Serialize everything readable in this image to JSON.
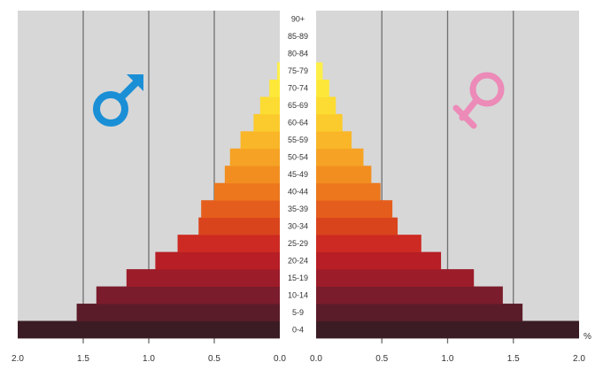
{
  "chart_data": {
    "type": "bar",
    "subtype": "population-pyramid",
    "title": "",
    "xlabel": "",
    "ylabel": "",
    "unit_label": "%",
    "grid": true,
    "xlim": [
      0,
      2.0
    ],
    "male_x_ticks": [
      "2.0",
      "1.5",
      "1.0",
      "0.5",
      "0.0"
    ],
    "female_x_ticks": [
      "0.0",
      "0.5",
      "1.0",
      "1.5",
      "2.0"
    ],
    "categories": [
      "0-4",
      "5-9",
      "10-14",
      "15-19",
      "20-24",
      "25-29",
      "30-34",
      "35-39",
      "40-44",
      "45-49",
      "50-54",
      "55-59",
      "60-64",
      "65-69",
      "70-74",
      "75-79",
      "80-84",
      "85-89",
      "90+"
    ],
    "series": [
      {
        "side": "left",
        "icon": "male-symbol-icon",
        "values": [
          2.0,
          1.55,
          1.4,
          1.17,
          0.95,
          0.78,
          0.62,
          0.6,
          0.5,
          0.42,
          0.38,
          0.3,
          0.2,
          0.15,
          0.08,
          0.02,
          0.0,
          0.0,
          0.0
        ]
      },
      {
        "side": "right",
        "icon": "female-symbol-icon",
        "values": [
          2.0,
          1.57,
          1.42,
          1.2,
          0.95,
          0.8,
          0.62,
          0.58,
          0.49,
          0.42,
          0.36,
          0.27,
          0.2,
          0.15,
          0.1,
          0.05,
          0.0,
          0.0,
          0.0
        ]
      }
    ],
    "colors": {
      "panel_background": "#d7d7d7",
      "gridline": "#6f6f6f",
      "male_symbol": "#1a8fd6",
      "female_symbol": "#ec8ab8",
      "bar_bands": [
        "#3b1c24",
        "#5a1c28",
        "#7a1c2c",
        "#9c1c2a",
        "#b71e26",
        "#cc2a22",
        "#d9441c",
        "#e55d1c",
        "#ec771d",
        "#f28e20",
        "#f6a224",
        "#f9b628",
        "#fbca2c",
        "#fcdc32",
        "#fde83a",
        "#feef48",
        "#ffffff",
        "#ffffff",
        "#ffffff"
      ]
    }
  }
}
